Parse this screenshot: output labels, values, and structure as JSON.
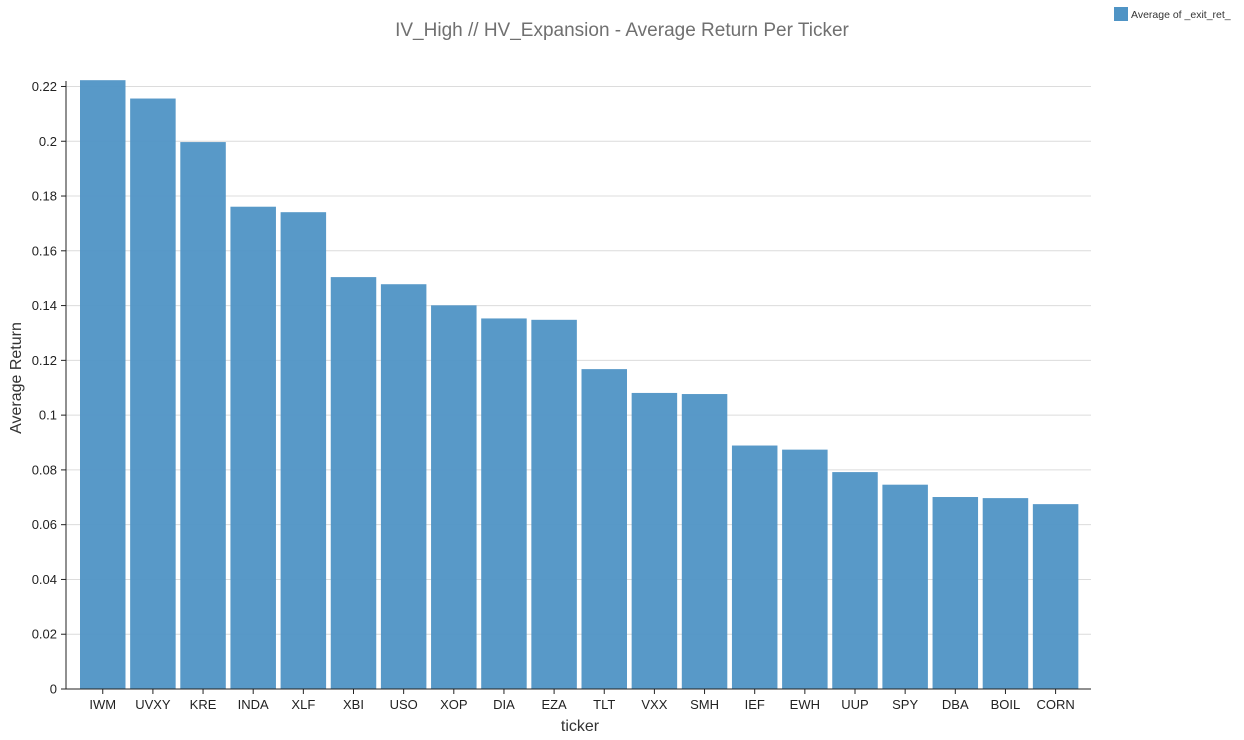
{
  "chart_data": {
    "type": "bar",
    "title": "IV_High // HV_Expansion - Average Return Per Ticker",
    "xlabel": "ticker",
    "ylabel": "Average Return",
    "legend": {
      "label": "Average of _exit_ret_",
      "placement": "top-right"
    },
    "ylim": [
      0,
      0.222
    ],
    "y_ticks": [
      "0",
      "0.02",
      "0.04",
      "0.06",
      "0.08",
      "0.1",
      "0.12",
      "0.14",
      "0.16",
      "0.18",
      "0.2",
      "0.22"
    ],
    "y_tick_values": [
      0,
      0.02,
      0.04,
      0.06,
      0.08,
      0.1,
      0.12,
      0.14,
      0.16,
      0.18,
      0.2,
      0.22
    ],
    "grid": true,
    "bar_color": "#4f94c5",
    "categories": [
      "IWM",
      "UVXY",
      "KRE",
      "INDA",
      "XLF",
      "XBI",
      "USO",
      "XOP",
      "DIA",
      "EZA",
      "TLT",
      "VXX",
      "SMH",
      "IEF",
      "EWH",
      "UUP",
      "SPY",
      "DBA",
      "BOIL",
      "CORN"
    ],
    "values": [
      0.2223,
      0.2156,
      0.1997,
      0.1761,
      0.1741,
      0.1504,
      0.1478,
      0.1401,
      0.1353,
      0.1348,
      0.1168,
      0.1081,
      0.1077,
      0.0889,
      0.0874,
      0.0792,
      0.0746,
      0.0701,
      0.0697,
      0.0675
    ]
  }
}
